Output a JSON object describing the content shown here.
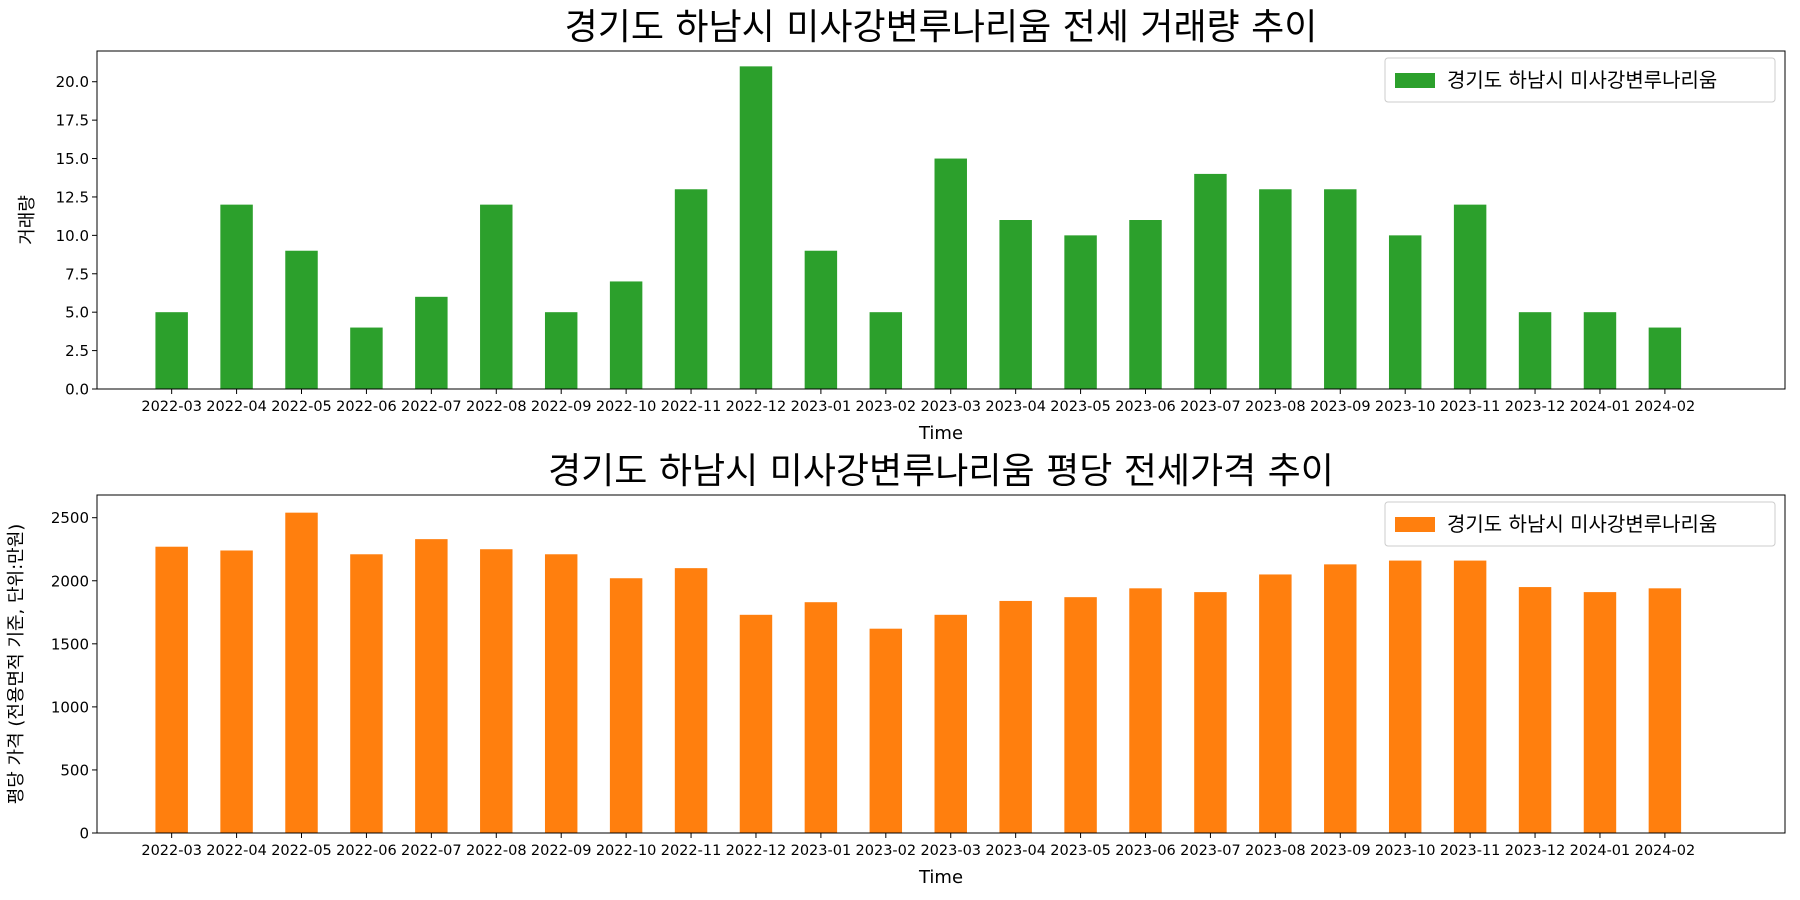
{
  "chart_data": [
    {
      "type": "bar",
      "title": "경기도 하남시 미사강변루나리움 전세 거래량 추이",
      "xlabel": "Time",
      "ylabel": "거래량",
      "color": "#2ca02c",
      "legend_position": "top-right",
      "ylim": [
        0,
        22
      ],
      "yticks": [
        "0.0",
        "2.5",
        "5.0",
        "7.5",
        "10.0",
        "12.5",
        "15.0",
        "17.5",
        "20.0"
      ],
      "categories": [
        "2022-03",
        "2022-04",
        "2022-05",
        "2022-06",
        "2022-07",
        "2022-08",
        "2022-09",
        "2022-10",
        "2022-11",
        "2022-12",
        "2023-01",
        "2023-02",
        "2023-03",
        "2023-04",
        "2023-05",
        "2023-06",
        "2023-07",
        "2023-08",
        "2023-09",
        "2023-10",
        "2023-11",
        "2023-12",
        "2024-01",
        "2024-02"
      ],
      "series": [
        {
          "name": "경기도 하남시 미사강변루나리움",
          "values": [
            5,
            12,
            9,
            4,
            6,
            12,
            5,
            7,
            13,
            21,
            9,
            5,
            15,
            11,
            10,
            11,
            14,
            13,
            13,
            10,
            12,
            5,
            5,
            4
          ]
        }
      ]
    },
    {
      "type": "bar",
      "title": "경기도 하남시 미사강변루나리움 평당 전세가격 추이",
      "xlabel": "Time",
      "ylabel": "평당 가격 (전용면적 기준, 단위:만원)",
      "color": "#ff7f0e",
      "legend_position": "top-right",
      "ylim": [
        0,
        2680
      ],
      "yticks": [
        "0",
        "500",
        "1000",
        "1500",
        "2000",
        "2500"
      ],
      "categories": [
        "2022-03",
        "2022-04",
        "2022-05",
        "2022-06",
        "2022-07",
        "2022-08",
        "2022-09",
        "2022-10",
        "2022-11",
        "2022-12",
        "2023-01",
        "2023-02",
        "2023-03",
        "2023-04",
        "2023-05",
        "2023-06",
        "2023-07",
        "2023-08",
        "2023-09",
        "2023-10",
        "2023-11",
        "2023-12",
        "2024-01",
        "2024-02"
      ],
      "series": [
        {
          "name": "경기도 하남시 미사강변루나리움",
          "values": [
            2270,
            2240,
            2540,
            2210,
            2330,
            2250,
            2210,
            2020,
            2100,
            1730,
            1830,
            1620,
            1730,
            1840,
            1870,
            1940,
            1910,
            2050,
            2130,
            2160,
            2160,
            1950,
            1910,
            1940
          ]
        }
      ]
    }
  ]
}
